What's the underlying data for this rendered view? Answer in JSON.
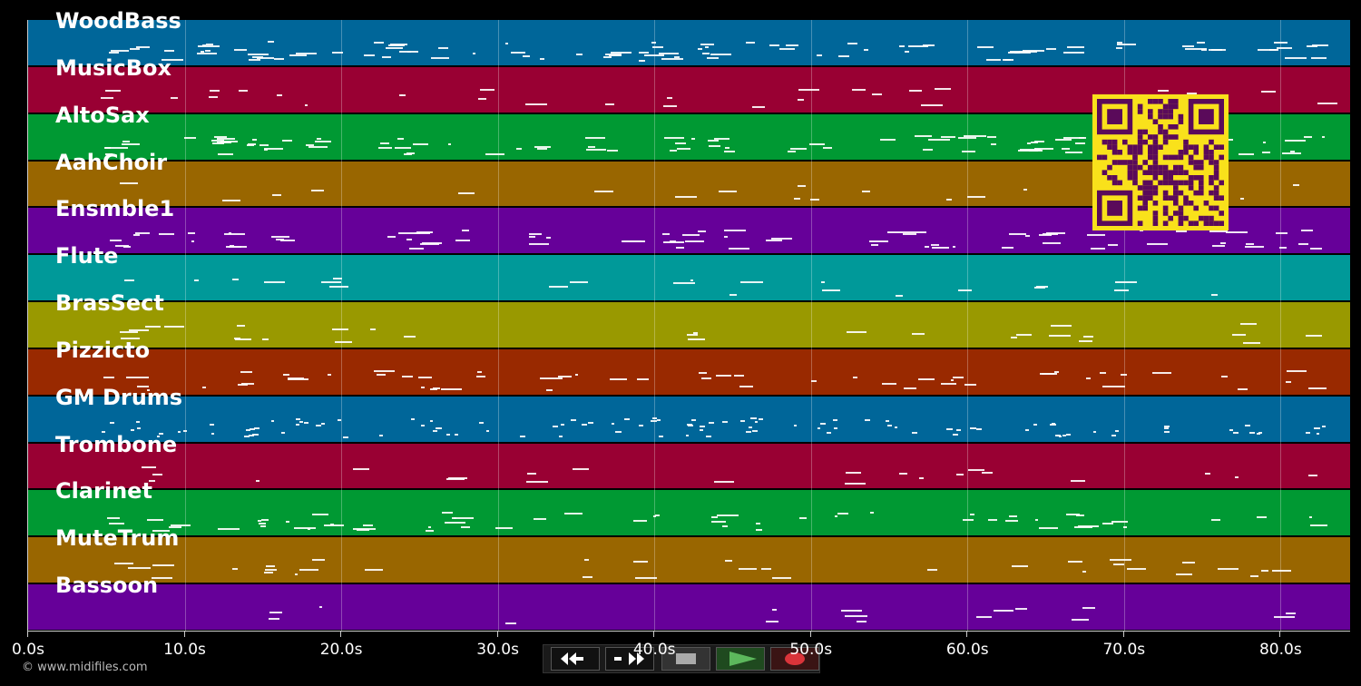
{
  "tracks": [
    {
      "name": "WoodBass",
      "color": "#006699"
    },
    {
      "name": "MusicBox",
      "color": "#990033"
    },
    {
      "name": "AltoSax",
      "color": "#009933"
    },
    {
      "name": "AahChoir",
      "color": "#996600"
    },
    {
      "name": "Ensmble1",
      "color": "#660099"
    },
    {
      "name": "Flute",
      "color": "#009999"
    },
    {
      "name": "BrasSect",
      "color": "#999900"
    },
    {
      "name": "Pizzicto",
      "color": "#992900"
    },
    {
      "name": "GM Drums",
      "color": "#006699"
    },
    {
      "name": "Trombone",
      "color": "#990033"
    },
    {
      "name": "Clarinet",
      "color": "#009933"
    },
    {
      "name": "MuteTrum",
      "color": "#996600"
    },
    {
      "name": "Bassoon",
      "color": "#660099"
    }
  ],
  "time_axis": {
    "max_seconds": 84.5,
    "ticks": [
      0,
      10,
      20,
      30,
      40,
      50,
      60,
      70,
      80
    ],
    "tick_labels": [
      "0.0s",
      "10.0s",
      "20.0s",
      "30.0s",
      "40.0s",
      "50.0s",
      "60.0s",
      "70.0s",
      "80.0s"
    ]
  },
  "transport": {
    "rewind_icon": "rewind-icon",
    "forward_icon": "fast-forward-icon",
    "stop_icon": "stop-icon",
    "play_icon": "play-icon",
    "record_icon": "record-icon",
    "play_color": "#5cb85c",
    "record_color": "#d9343a"
  },
  "qr_code": {
    "color": "#f9e11b",
    "module_color": "#5a0a5a"
  },
  "footer": {
    "copyright": "© www.midifiles.com"
  }
}
